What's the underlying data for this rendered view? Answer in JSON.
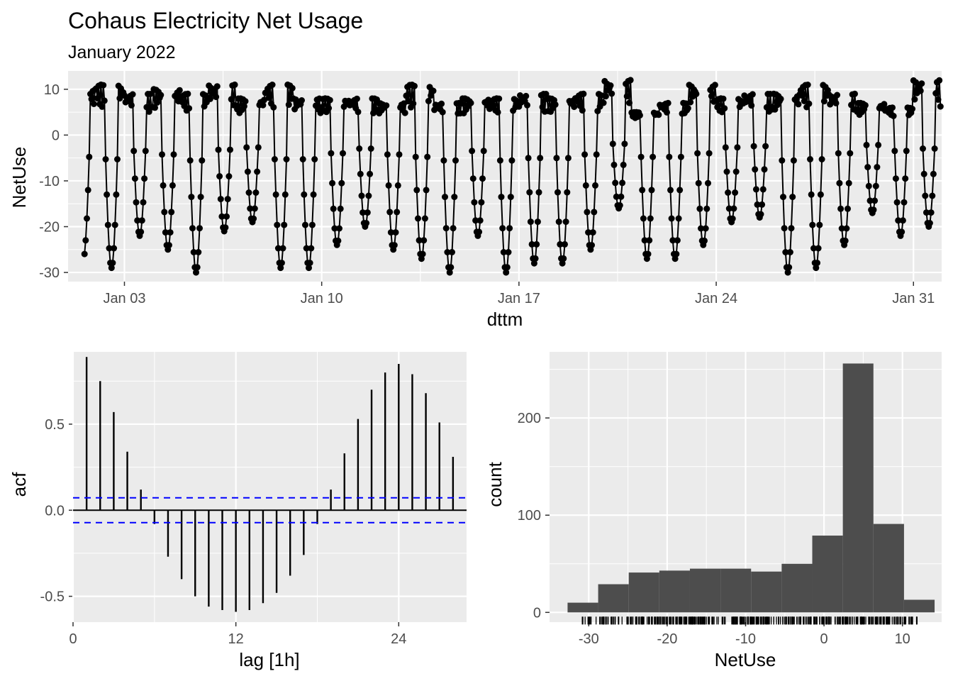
{
  "chart_data": [
    {
      "type": "line",
      "title": "Cohaus Electricity Net Usage",
      "subtitle": "January 2022",
      "xlabel": "dttm",
      "ylabel": "NetUse",
      "x_range": [
        "2022-01-01 00:00",
        "2022-02-01 00:00"
      ],
      "ylim": [
        -32,
        14
      ],
      "xticks": [
        {
          "date": "2022-01-03",
          "label": "Jan 03"
        },
        {
          "date": "2022-01-10",
          "label": "Jan 10"
        },
        {
          "date": "2022-01-17",
          "label": "Jan 17"
        },
        {
          "date": "2022-01-24",
          "label": "Jan 24"
        },
        {
          "date": "2022-01-31",
          "label": "Jan 31"
        }
      ],
      "yticks": [
        {
          "value": 10,
          "label": "10"
        },
        {
          "value": 0,
          "label": "0"
        },
        {
          "value": -10,
          "label": "-10"
        },
        {
          "value": -20,
          "label": "-20"
        },
        {
          "value": -30,
          "label": "-30"
        }
      ],
      "series": [
        {
          "x_start": "2022-01-01 14:00",
          "x_end": "2022-01-31 23:00",
          "interval": "1h",
          "daily_minima": [
            -27,
            -29,
            -22,
            -25,
            -30,
            -21,
            -19,
            -29,
            -29,
            -24,
            -20,
            -25,
            -27,
            -30,
            -22,
            -30,
            -28,
            -28,
            -25,
            -16,
            -27,
            -27,
            -24,
            -19,
            -18,
            -30,
            -29,
            -24,
            -17,
            -22,
            -20
          ],
          "daily_maxima": [
            10,
            11,
            9,
            10,
            9,
            11,
            8,
            11,
            8,
            8,
            8,
            7,
            11,
            7,
            8,
            8,
            9,
            8,
            9,
            12,
            5,
            7,
            11,
            8,
            9,
            9,
            11,
            9,
            7,
            6,
            12
          ]
        }
      ],
      "grid": true
    },
    {
      "type": "bar",
      "xlabel": "lag [1h]",
      "ylabel": "acf",
      "xlim": [
        0,
        29
      ],
      "ylim": [
        -0.65,
        0.92
      ],
      "lags": [
        1,
        2,
        3,
        4,
        5,
        6,
        7,
        8,
        9,
        10,
        11,
        12,
        13,
        14,
        15,
        16,
        17,
        18,
        19,
        20,
        21,
        22,
        23,
        24,
        25,
        26,
        27,
        28
      ],
      "values": [
        0.89,
        0.75,
        0.57,
        0.34,
        0.12,
        -0.08,
        -0.27,
        -0.4,
        -0.5,
        -0.56,
        -0.58,
        -0.59,
        -0.58,
        -0.54,
        -0.48,
        -0.38,
        -0.26,
        -0.08,
        0.12,
        0.33,
        0.53,
        0.7,
        0.8,
        0.85,
        0.79,
        0.68,
        0.51,
        0.31
      ],
      "confidence_bound": 0.072,
      "confidence_color": "#0000ff",
      "xticks": [
        {
          "value": 0,
          "label": "0"
        },
        {
          "value": 12,
          "label": "12"
        },
        {
          "value": 24,
          "label": "24"
        }
      ],
      "yticks": [
        {
          "value": 0.5,
          "label": "0.5"
        },
        {
          "value": 0.0,
          "label": "0.0"
        },
        {
          "value": -0.5,
          "label": "-0.5"
        }
      ],
      "grid": true
    },
    {
      "type": "histogram",
      "xlabel": "NetUse",
      "ylabel": "count",
      "xlim": [
        -35,
        15
      ],
      "ylim": [
        -10,
        268
      ],
      "bin_edges": [
        -32.7,
        -28.8,
        -24.9,
        -21.0,
        -17.1,
        -13.2,
        -9.3,
        -5.4,
        -1.5,
        2.4,
        6.3,
        10.2,
        14.1
      ],
      "counts": [
        10,
        29,
        41,
        43,
        45,
        45,
        42,
        50,
        79,
        256,
        91,
        13
      ],
      "bar_color": "#4d4d4d",
      "rug": true,
      "xticks": [
        {
          "value": -30,
          "label": "-30"
        },
        {
          "value": -20,
          "label": "-20"
        },
        {
          "value": -10,
          "label": "-10"
        },
        {
          "value": 0,
          "label": "0"
        },
        {
          "value": 10,
          "label": "10"
        }
      ],
      "yticks": [
        {
          "value": 0,
          "label": "0"
        },
        {
          "value": 100,
          "label": "100"
        },
        {
          "value": 200,
          "label": "200"
        }
      ],
      "grid": true
    }
  ]
}
